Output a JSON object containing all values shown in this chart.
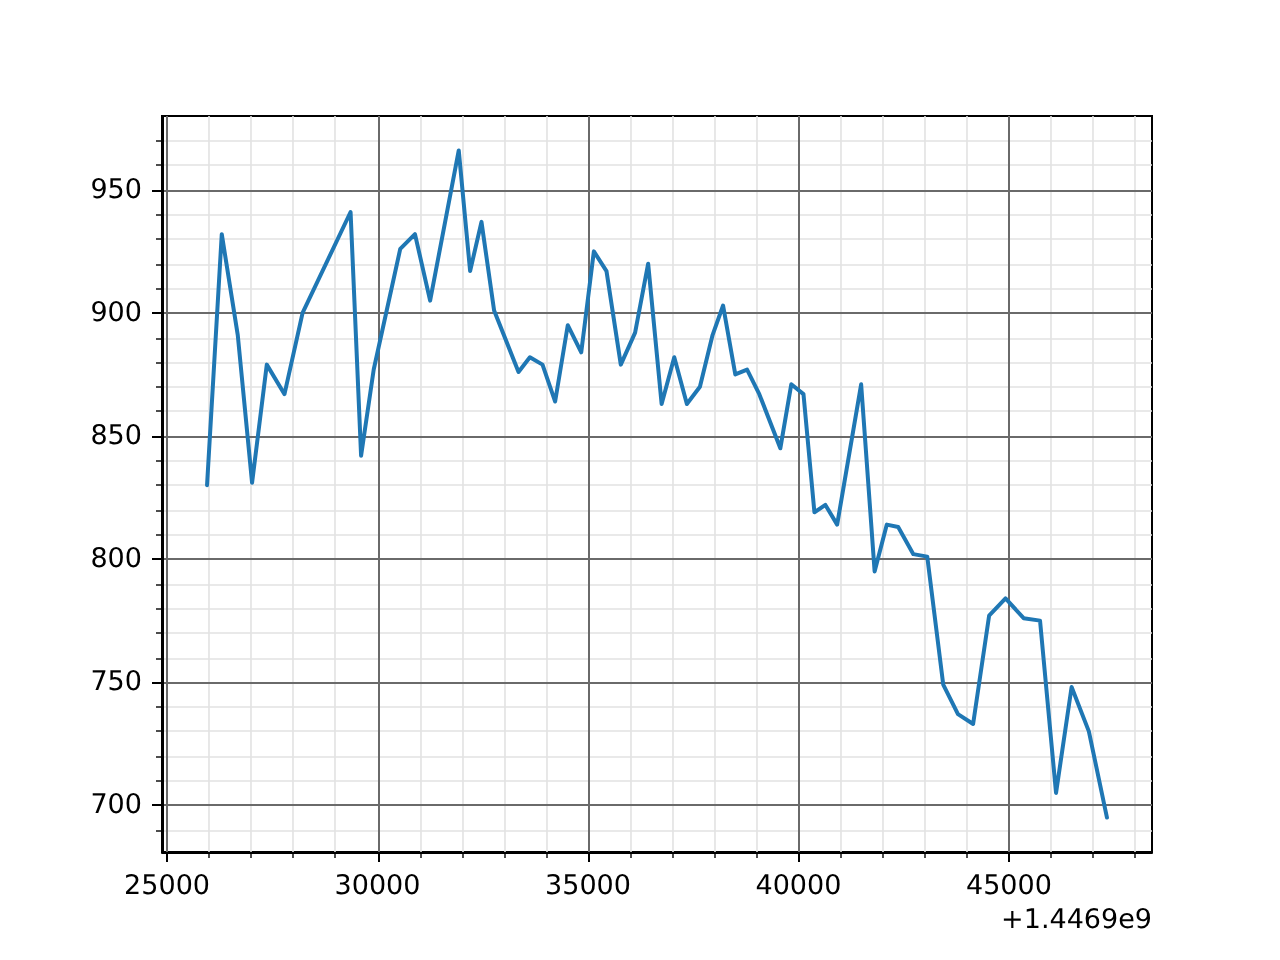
{
  "chart_data": {
    "type": "line",
    "x": [
      25950,
      26300,
      26680,
      27020,
      27370,
      27790,
      28220,
      29360,
      29610,
      29910,
      30540,
      30890,
      31250,
      31930,
      32200,
      32470,
      32770,
      33350,
      33620,
      33920,
      34220,
      34520,
      34840,
      35140,
      35440,
      35780,
      36120,
      36430,
      36750,
      37050,
      37350,
      37660,
      37960,
      38210,
      38500,
      38780,
      39070,
      39570,
      39830,
      40120,
      40380,
      40640,
      40920,
      41490,
      41810,
      42100,
      42370,
      42730,
      43060,
      43440,
      43790,
      44150,
      44530,
      44920,
      45350,
      45740,
      46120,
      46490,
      46900,
      47330
    ],
    "values": [
      830,
      932,
      891,
      831,
      879,
      867,
      900,
      941,
      842,
      877,
      926,
      932,
      905,
      966,
      917,
      937,
      901,
      876,
      882,
      879,
      864,
      895,
      884,
      925,
      917,
      879,
      892,
      920,
      863,
      882,
      863,
      870,
      891,
      903,
      875,
      877,
      867,
      845,
      871,
      867,
      819,
      822,
      814,
      871,
      795,
      814,
      813,
      802,
      801,
      749,
      737,
      733,
      777,
      784,
      776,
      775,
      705,
      748,
      730,
      695
    ],
    "color": "#1f77b4",
    "marker": "none",
    "line_style": "solid",
    "grid": true,
    "xlim": [
      24880,
      48400
    ],
    "xticks": [
      25000,
      {
        "value": 26000,
        "label": null
      },
      {
        "value": 27000,
        "label": null
      },
      {
        "value": 28000,
        "label": null
      },
      {
        "value": 29000,
        "label": null
      },
      30000,
      {
        "value": 31000,
        "label": null
      },
      {
        "value": 32000,
        "label": null
      },
      {
        "value": 33000,
        "label": null
      },
      {
        "value": 34000,
        "label": null
      },
      35000,
      {
        "value": 36000,
        "label": null
      },
      {
        "value": 37000,
        "label": null
      },
      {
        "value": 38000,
        "label": null
      },
      {
        "value": 39000,
        "label": null
      },
      40000,
      {
        "value": 41000,
        "label": null
      },
      {
        "value": 42000,
        "label": null
      },
      {
        "value": 43000,
        "label": null
      },
      {
        "value": 44000,
        "label": null
      },
      45000,
      {
        "value": 46000,
        "label": null
      },
      {
        "value": 47000,
        "label": null
      },
      {
        "value": 48000,
        "label": null
      }
    ],
    "ylim": [
      681,
      980
    ],
    "yticks": [
      {
        "value": 690,
        "label": null
      },
      700,
      {
        "value": 710,
        "label": null
      },
      {
        "value": 720,
        "label": null
      },
      {
        "value": 730,
        "label": null
      },
      {
        "value": 740,
        "label": null
      },
      750,
      {
        "value": 760,
        "label": null
      },
      {
        "value": 770,
        "label": null
      },
      {
        "value": 780,
        "label": null
      },
      {
        "value": 790,
        "label": null
      },
      800,
      {
        "value": 810,
        "label": null
      },
      {
        "value": 820,
        "label": null
      },
      {
        "value": 830,
        "label": null
      },
      {
        "value": 840,
        "label": null
      },
      850,
      {
        "value": 860,
        "label": null
      },
      {
        "value": 870,
        "label": null
      },
      {
        "value": 880,
        "label": null
      },
      {
        "value": 890,
        "label": null
      },
      900,
      {
        "value": 910,
        "label": null
      },
      {
        "value": 920,
        "label": null
      },
      {
        "value": 930,
        "label": null
      },
      {
        "value": 940,
        "label": null
      },
      950,
      {
        "value": 960,
        "label": null
      },
      {
        "value": 970,
        "label": null
      }
    ],
    "annotations": [
      "+1.4469e9"
    ]
  }
}
